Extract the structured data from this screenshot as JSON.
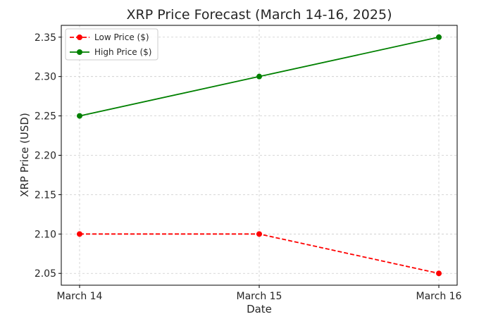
{
  "chart_data": {
    "type": "line",
    "title": "XRP Price Forecast (March 14-16, 2025)",
    "xlabel": "Date",
    "ylabel": "XRP Price (USD)",
    "categories": [
      "March 14",
      "March 15",
      "March 16"
    ],
    "ylim": [
      2.035,
      2.365
    ],
    "yticks": [
      "2.05",
      "2.10",
      "2.15",
      "2.20",
      "2.25",
      "2.30",
      "2.35"
    ],
    "grid": true,
    "legend_position": "top-left",
    "series": [
      {
        "name": "Low Price ($)",
        "values": [
          2.1,
          2.1,
          2.05
        ],
        "color": "#ff0000",
        "line_style": "dashed",
        "marker": "circle"
      },
      {
        "name": "High Price ($)",
        "values": [
          2.25,
          2.3,
          2.35
        ],
        "color": "#008000",
        "line_style": "solid",
        "marker": "circle"
      }
    ]
  }
}
